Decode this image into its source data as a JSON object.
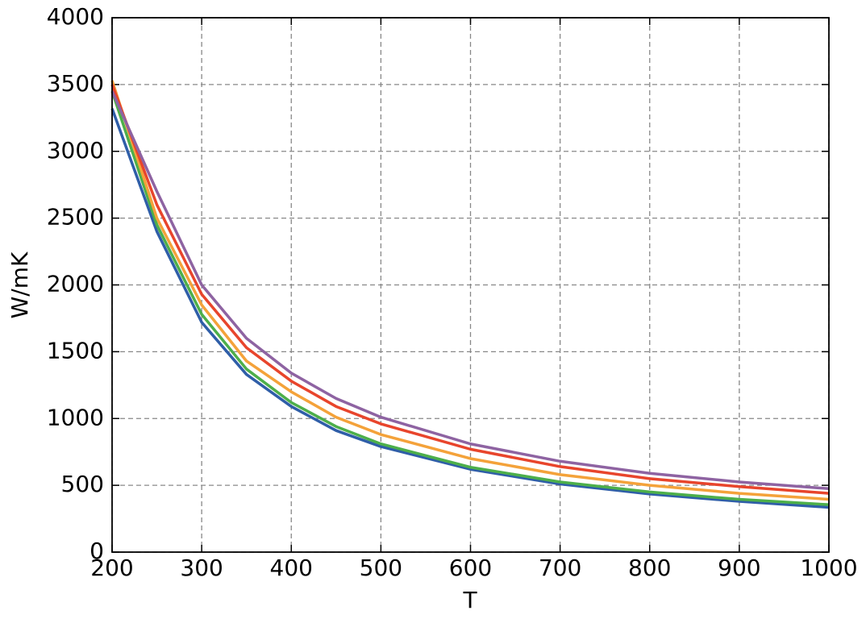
{
  "chart_data": {
    "type": "line",
    "x_label": "T",
    "y_label": "W/mK",
    "x": [
      200,
      250,
      300,
      350,
      400,
      450,
      500,
      600,
      700,
      800,
      900,
      1000
    ],
    "series": [
      {
        "color": "#2f5ea8",
        "values": [
          3320,
          2400,
          1720,
          1330,
          1090,
          910,
          790,
          620,
          510,
          435,
          380,
          335
        ]
      },
      {
        "color": "#4daf4a",
        "values": [
          3450,
          2450,
          1780,
          1370,
          1120,
          940,
          810,
          635,
          525,
          450,
          395,
          355
        ]
      },
      {
        "color": "#f4a23a",
        "values": [
          3530,
          2500,
          1850,
          1430,
          1200,
          1010,
          880,
          700,
          580,
          500,
          440,
          395
        ]
      },
      {
        "color": "#e8452c",
        "values": [
          3500,
          2600,
          1930,
          1530,
          1280,
          1090,
          960,
          770,
          640,
          550,
          490,
          440
        ]
      },
      {
        "color": "#8e63a2",
        "values": [
          3450,
          2700,
          2000,
          1600,
          1340,
          1150,
          1010,
          810,
          680,
          590,
          525,
          475
        ]
      }
    ],
    "xlim": [
      200,
      1000
    ],
    "xticks": [
      200,
      300,
      400,
      500,
      600,
      700,
      800,
      900,
      1000
    ],
    "ylim": [
      0,
      4000
    ],
    "yticks": [
      0,
      500,
      1000,
      1500,
      2000,
      2500,
      3000,
      3500,
      4000
    ],
    "grid": true
  }
}
